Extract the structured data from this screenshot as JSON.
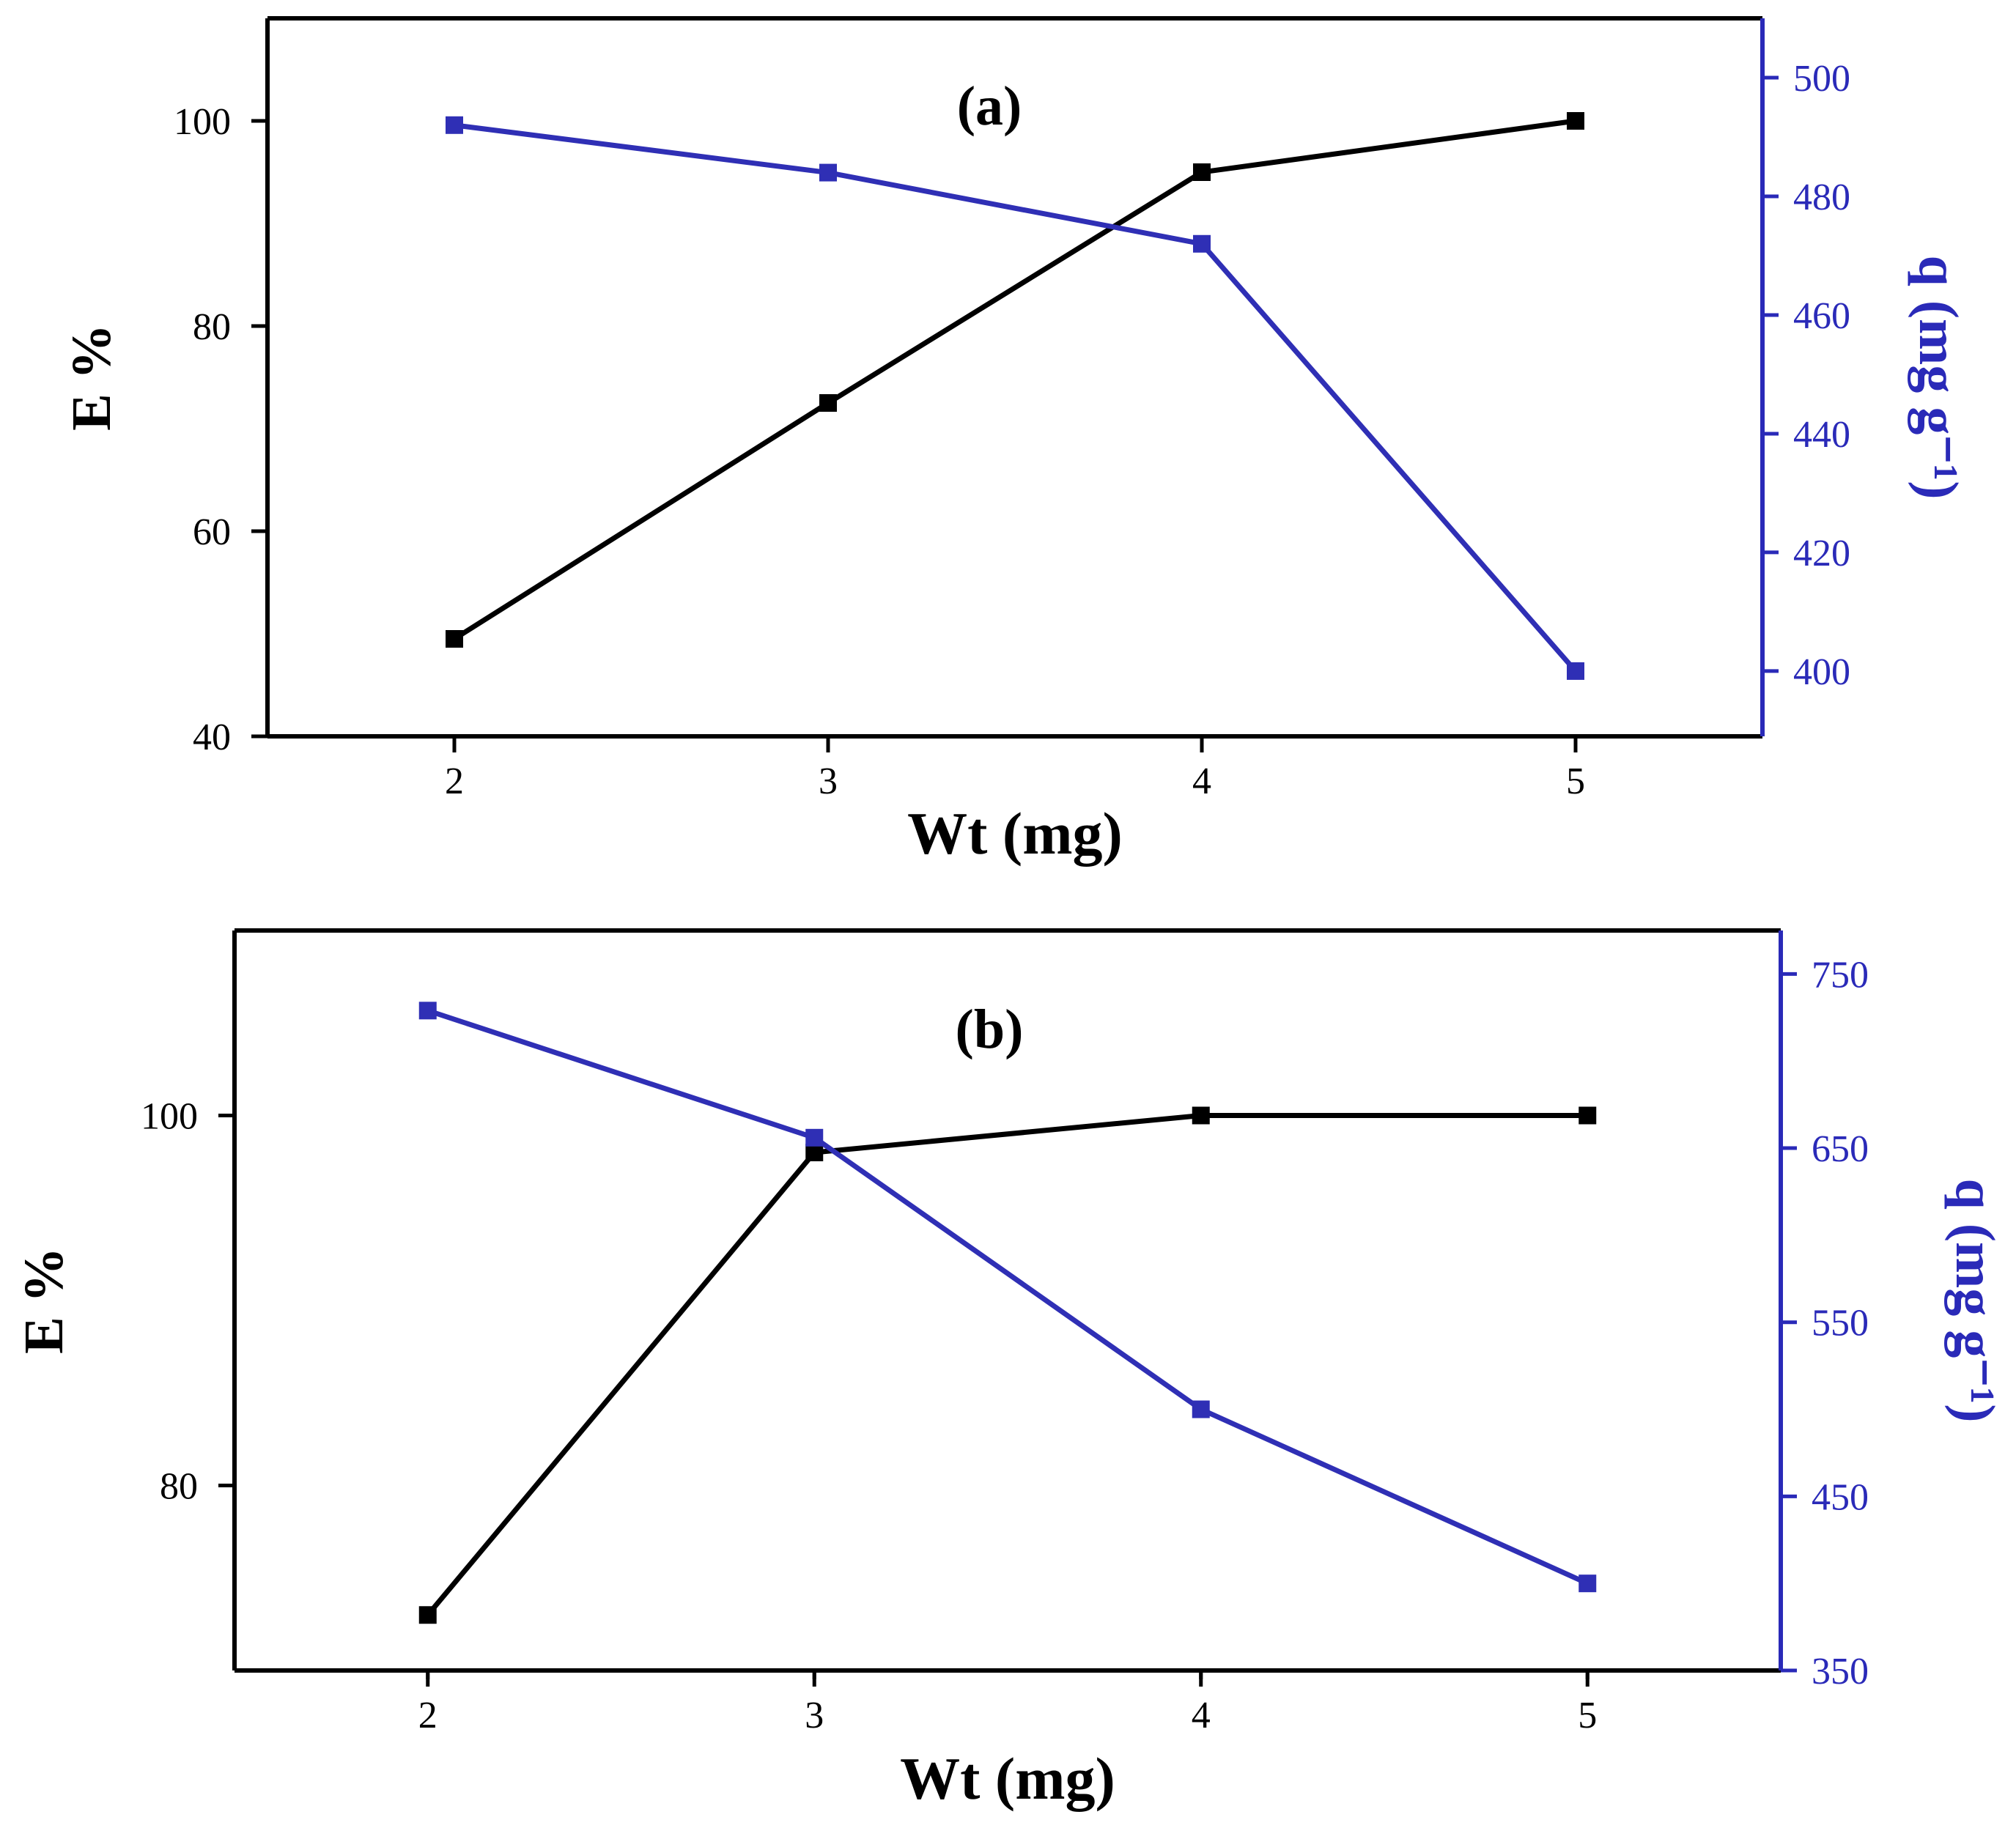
{
  "colors": {
    "left_axis": "#000000",
    "right_axis": "#2a2ab8",
    "series_e": "#000000",
    "series_q": "#2f2fb5"
  },
  "chart_data": [
    {
      "type": "line",
      "panel_label": "(a)",
      "xlabel": "Wt (mg)",
      "ylabel": "E %",
      "y2label": "q (mg g⁻¹)",
      "x": [
        2,
        3,
        4,
        5
      ],
      "xlim": [
        1.5,
        5.5
      ],
      "xticks": [
        2,
        3,
        4,
        5
      ],
      "ylim": [
        40,
        110
      ],
      "yticks": [
        40,
        60,
        80,
        100
      ],
      "y2lim": [
        389,
        510
      ],
      "y2ticks": [
        400,
        420,
        440,
        460,
        480,
        500
      ],
      "series": [
        {
          "name": "E %",
          "axis": "left",
          "marker": "square",
          "values": [
            49.5,
            72.5,
            95,
            100
          ]
        },
        {
          "name": "q",
          "axis": "right",
          "marker": "square",
          "values": [
            492,
            484,
            472,
            400
          ]
        }
      ]
    },
    {
      "type": "line",
      "panel_label": "(b)",
      "xlabel": "Wt (mg)",
      "ylabel": "E %",
      "y2label": "q (mg g⁻¹)",
      "x": [
        2,
        3,
        4,
        5
      ],
      "xlim": [
        1.5,
        5.5
      ],
      "xticks": [
        2,
        3,
        4,
        5
      ],
      "ylim": [
        70,
        110
      ],
      "yticks": [
        80,
        100
      ],
      "y2lim": [
        350,
        775
      ],
      "y2ticks": [
        350,
        450,
        550,
        650,
        750
      ],
      "series": [
        {
          "name": "E %",
          "axis": "left",
          "marker": "square",
          "values": [
            73,
            98,
            100,
            100
          ]
        },
        {
          "name": "q",
          "axis": "right",
          "marker": "square",
          "values": [
            729,
            656,
            500,
            400
          ]
        }
      ]
    }
  ]
}
